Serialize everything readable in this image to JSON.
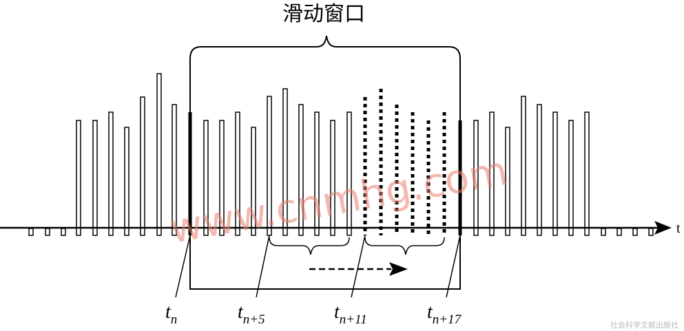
{
  "title": "滑动窗口",
  "axis_label": "t",
  "markers": [
    {
      "symbol": "t",
      "subscript": "n"
    },
    {
      "symbol": "t",
      "subscript": "n+5"
    },
    {
      "symbol": "t",
      "subscript": "n+11"
    },
    {
      "symbol": "t",
      "subscript": "n+17"
    }
  ],
  "watermark": "www.cnmhg.com",
  "publisher": "社会科学文献出版社"
}
